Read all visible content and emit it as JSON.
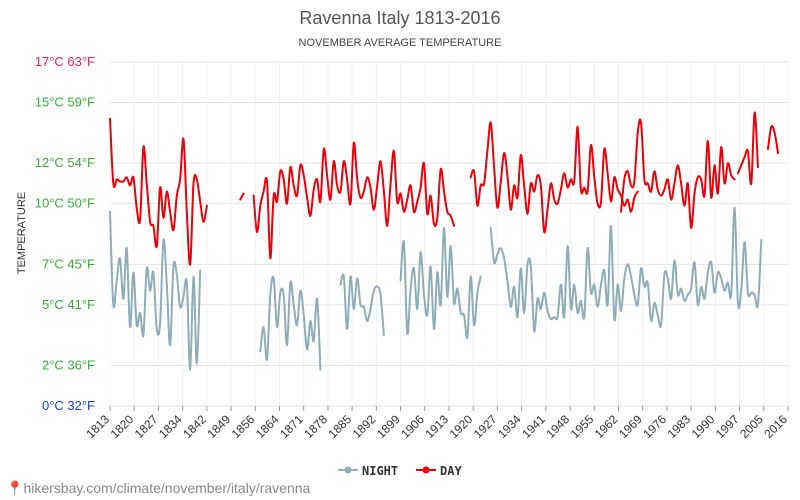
{
  "chart_data": {
    "type": "line",
    "title": "Ravenna Italy 1813-2016",
    "subtitle": "NOVEMBER AVERAGE TEMPERATURE",
    "ylabel": "TEMPERATURE",
    "ylim": [
      0,
      17
    ],
    "y_ticks": [
      {
        "value": 0,
        "label": "0°C 32°F",
        "color": "#1a3fcc"
      },
      {
        "value": 2,
        "label": "2°C 36°F",
        "color": "#3aab3a"
      },
      {
        "value": 5,
        "label": "5°C 41°F",
        "color": "#3aab3a"
      },
      {
        "value": 7,
        "label": "7°C 45°F",
        "color": "#3aab3a"
      },
      {
        "value": 10,
        "label": "10°C 50°F",
        "color": "#3aab3a"
      },
      {
        "value": 12,
        "label": "12°C 54°F",
        "color": "#3aab3a"
      },
      {
        "value": 15,
        "label": "15°C 59°F",
        "color": "#3aab3a"
      },
      {
        "value": 17,
        "label": "17°C 63°F",
        "color": "#e0245e"
      }
    ],
    "x_ticks": [
      "1813",
      "1820",
      "1827",
      "1834",
      "1842",
      "1849",
      "1856",
      "1864",
      "1871",
      "1878",
      "1885",
      "1892",
      "1899",
      "1906",
      "1913",
      "1920",
      "1927",
      "1934",
      "1941",
      "1948",
      "1955",
      "1962",
      "1969",
      "1976",
      "1983",
      "1990",
      "1997",
      "2005",
      "2016"
    ],
    "x_range": [
      1813,
      2016
    ],
    "grid": true,
    "legend_position": "bottom-center",
    "series": [
      {
        "name": "NIGHT",
        "color": "#8fadb8",
        "segments": [
          {
            "start": 1813,
            "values": [
              9.6,
              5.0,
              6.2,
              7.3,
              5.3,
              7.8,
              3.9,
              6.6,
              4.0,
              4.6,
              3.5,
              6.8,
              5.7,
              6.6,
              3.8,
              4.1,
              8.2,
              6.0,
              3.0,
              6.9,
              6.5,
              4.9,
              5.4,
              6.1,
              1.8,
              6.4,
              2.1,
              6.7
            ]
          },
          {
            "start": 1858,
            "values": [
              2.7,
              3.9,
              2.3,
              5.5,
              6.3,
              3.9,
              5.6,
              5.5,
              3.0,
              6.1,
              5.0,
              4.0,
              5.7,
              4.5,
              2.8,
              4.2,
              3.2,
              5.3,
              1.8
            ]
          },
          {
            "start": 1882,
            "values": [
              6.0,
              6.4,
              3.8,
              6.4,
              4.8,
              6.3,
              5.0,
              4.9,
              4.2,
              4.8,
              5.7,
              5.9,
              5.5,
              3.5
            ]
          },
          {
            "start": 1900,
            "values": [
              6.2,
              8.1,
              3.6,
              5.8,
              6.8,
              4.8,
              7.6,
              5.5,
              4.5,
              6.9,
              3.8,
              6.6,
              5.0,
              8.8,
              5.4,
              7.9,
              5.1,
              5.8,
              4.6,
              4.5,
              3.4,
              6.4,
              4.0,
              5.6,
              6.4
            ]
          },
          {
            "start": 1927,
            "values": [
              8.8,
              7.1,
              7.5,
              7.8,
              7.3,
              6.2,
              4.9,
              5.9,
              4.4,
              6.8,
              4.6,
              7.0,
              6.9,
              3.7,
              5.3,
              4.8,
              5.6,
              4.7,
              4.3,
              4.4,
              4.4,
              6.0,
              4.4,
              7.9,
              4.8,
              6.0,
              4.6,
              5.2,
              4.4,
              7.8,
              5.6,
              6.0,
              4.9,
              6.0,
              6.7,
              5.0,
              8.9,
              4.3,
              6.0,
              4.7,
              6.3,
              7.0,
              6.4,
              5.5,
              5.0,
              6.8,
              5.9,
              6.1,
              4.2,
              5.1,
              4.5,
              4.0,
              6.5,
              6.3,
              5.3,
              7.2,
              5.5,
              5.8,
              5.2,
              5.5,
              5.8,
              7.1,
              5.0,
              5.9,
              5.3,
              6.6,
              7.1,
              5.6,
              6.6,
              6.3,
              5.7,
              6.1,
              5.5,
              9.8,
              5.1,
              5.7,
              8.1,
              5.6,
              5.6,
              5.5,
              5.0,
              8.2
            ]
          }
        ]
      },
      {
        "name": "DAY",
        "color": "#e8000b",
        "segments": [
          {
            "start": 1813,
            "values": [
              14.2,
              11.0,
              11.2,
              11.1,
              11.1,
              11.3,
              10.9,
              11.3,
              9.8,
              9.2,
              12.8,
              11.0,
              9.1,
              8.9,
              7.9,
              10.8,
              9.3,
              10.6,
              9.6,
              8.7,
              10.4,
              11.2,
              13.2,
              9.6,
              7.0,
              11.0,
              11.2,
              10.1,
              9.1,
              9.9
            ]
          },
          {
            "start": 1852,
            "values": [
              10.2,
              10.5
            ]
          },
          {
            "start": 1856,
            "values": [
              10.4,
              8.6,
              9.9,
              10.6,
              11.1,
              7.3,
              10.4,
              10.1,
              11.6,
              11.2,
              10.0,
              11.8,
              10.9,
              10.4,
              11.9,
              11.4,
              10.3,
              9.4,
              10.7,
              11.2,
              10.1,
              12.7,
              11.4,
              10.2,
              12.1,
              10.9,
              10.6,
              12.1,
              11.2,
              10.0,
              13.0,
              11.2,
              10.3,
              10.6,
              11.3,
              10.8,
              9.7,
              10.9,
              12.1,
              10.6,
              8.9,
              11.0,
              12.6,
              10.1,
              10.5,
              9.6,
              10.2,
              10.9,
              9.6,
              10.1,
              10.8,
              12.0,
              9.5,
              10.4,
              9.0,
              9.3,
              11.7,
              10.6,
              9.6,
              9.4,
              8.9
            ]
          },
          {
            "start": 1921,
            "values": [
              11.3,
              11.6,
              9.9,
              10.9,
              11.0,
              12.6,
              14.0,
              11.8,
              9.8,
              11.1,
              12.5,
              11.4,
              9.7,
              10.9,
              10.3,
              12.4,
              10.9,
              9.5,
              11.0,
              10.6,
              11.4,
              10.9,
              8.6,
              9.7,
              11.0,
              10.2,
              10.0,
              10.7,
              11.5,
              10.8,
              11.2,
              11.1,
              13.8,
              10.7,
              10.8,
              10.6,
              12.9,
              11.3,
              10.0,
              10.1,
              12.7,
              11.5,
              10.1,
              11.3,
              10.7,
              10.4,
              9.9,
              10.2,
              9.6,
              10.3,
              10.6
            ]
          },
          {
            "start": 1966,
            "values": [
              9.6,
              11.2,
              11.6,
              10.9,
              11.1,
              13.5,
              14.0,
              11.2,
              11.0,
              10.6,
              11.6,
              10.7,
              10.4,
              10.7,
              11.2,
              10.2,
              11.0,
              11.9,
              11.0,
              9.9,
              11.0,
              8.8,
              10.5,
              11.3,
              11.2,
              10.4,
              13.1,
              10.3,
              11.9,
              10.5,
              12.8,
              11.0,
              12.0,
              11.4,
              11.2
            ]
          },
          {
            "start": 2001,
            "values": [
              11.5,
              11.9,
              12.3,
              12.6,
              11.0,
              14.5,
              11.8
            ]
          },
          {
            "start": 2010,
            "values": [
              12.7,
              13.8,
              13.5,
              12.5
            ]
          }
        ]
      }
    ]
  },
  "footer": {
    "source_text": "hikersbay.com/climate/november/italy/ravenna",
    "source_icon": "location-pin-icon"
  }
}
